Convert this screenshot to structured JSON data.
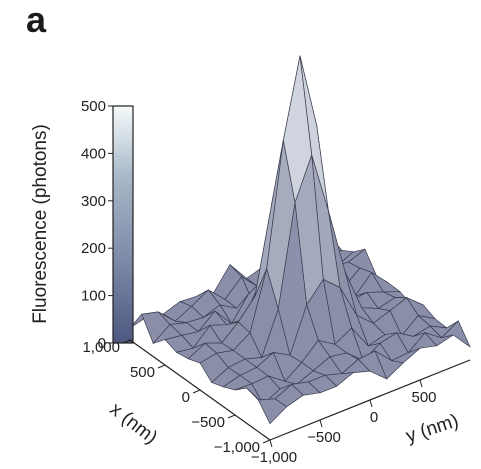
{
  "panel_label": "a",
  "chart_data": {
    "type": "surface",
    "colorbar": {
      "label": "Fluorescence (photons)",
      "range": [
        0,
        500
      ],
      "ticks": [
        0,
        100,
        200,
        300,
        400,
        500
      ],
      "tick_labels": [
        "0",
        "100",
        "200",
        "300",
        "400",
        "500"
      ],
      "colors": [
        "#4e5780",
        "#7d8aa8",
        "#a8b8c8",
        "#f6fbfb"
      ]
    },
    "x_axis": {
      "label": "x (nm)",
      "range": [
        -1000,
        1000
      ],
      "tick_labels": [
        "1,000",
        "500",
        "0",
        "−500",
        "−1,000"
      ],
      "ticks": [
        1000,
        500,
        0,
        -500,
        -1000
      ]
    },
    "y_axis": {
      "label": "y (nm)",
      "range": [
        -1000,
        1000
      ],
      "tick_labels": [
        "−1,000",
        "−500",
        "0",
        "500"
      ],
      "ticks": [
        -1000,
        -500,
        0,
        500
      ]
    },
    "z_range": [
      0,
      500
    ],
    "peak": {
      "x": 0,
      "y": 0,
      "value": 500
    },
    "background_level": 40,
    "surface_color": "#8a8ea8",
    "edge_color": "#3a3d4e"
  }
}
